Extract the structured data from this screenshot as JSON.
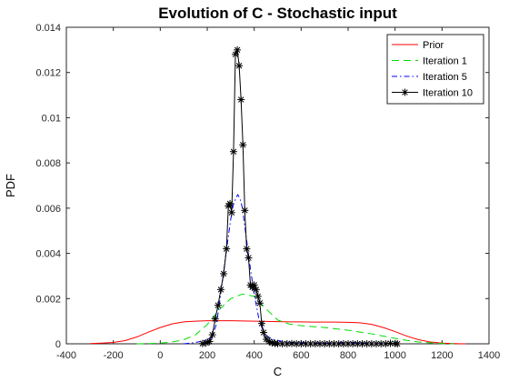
{
  "chart_data": {
    "type": "line",
    "title": "Evolution of C - Stochastic input",
    "xlabel": "C",
    "ylabel": "PDF",
    "xlim": [
      -400,
      1400
    ],
    "ylim": [
      0,
      0.014
    ],
    "xticks": [
      -400,
      -200,
      0,
      200,
      400,
      600,
      800,
      1000,
      1200,
      1400
    ],
    "xtick_labels": [
      "-400",
      "-200",
      "0",
      "200",
      "400",
      "600",
      "800",
      "1000",
      "1200",
      "1400"
    ],
    "yticks": [
      0,
      0.002,
      0.004,
      0.006,
      0.008,
      0.01,
      0.012,
      0.014
    ],
    "ytick_labels": [
      "0",
      "0.002",
      "0.004",
      "0.006",
      "0.008",
      "0.01",
      "0.012",
      "0.014"
    ],
    "grid": false,
    "legend_position": "top-right",
    "series": [
      {
        "name": "Prior",
        "color": "#ff0000",
        "dash": "solid",
        "marker": "none",
        "x": [
          -300,
          -250,
          -200,
          -150,
          -100,
          -50,
          0,
          50,
          100,
          150,
          200,
          250,
          300,
          350,
          400,
          450,
          500,
          550,
          600,
          650,
          700,
          750,
          800,
          850,
          900,
          950,
          1000,
          1050,
          1100,
          1150,
          1200,
          1250,
          1300
        ],
        "y": [
          1e-05,
          3e-05,
          6e-05,
          0.00014,
          0.0003,
          0.00052,
          0.00072,
          0.00088,
          0.00097,
          0.001,
          0.00102,
          0.00102,
          0.00102,
          0.00101,
          0.001,
          0.00099,
          0.00098,
          0.00097,
          0.00097,
          0.00096,
          0.00096,
          0.00096,
          0.00095,
          0.00093,
          0.00086,
          0.00072,
          0.00054,
          0.00034,
          0.00018,
          8e-05,
          3e-05,
          1e-05,
          0
        ]
      },
      {
        "name": "Iteration 1",
        "color": "#00dd00",
        "dash": "8,5",
        "marker": "none",
        "x": [
          -100,
          -50,
          0,
          50,
          100,
          150,
          200,
          250,
          300,
          350,
          400,
          450,
          500,
          550,
          600,
          650,
          700,
          750,
          800,
          850,
          900,
          950,
          1000,
          1050,
          1100,
          1150,
          1200,
          1250
        ],
        "y": [
          0,
          1e-05,
          3e-05,
          8e-05,
          0.00018,
          0.0004,
          0.00085,
          0.0015,
          0.002,
          0.0022,
          0.0021,
          0.00155,
          0.00105,
          0.00087,
          0.0008,
          0.00076,
          0.00072,
          0.00066,
          0.0006,
          0.00052,
          0.00044,
          0.00034,
          0.00024,
          0.00015,
          8e-05,
          4e-05,
          1e-05,
          0
        ]
      },
      {
        "name": "Iteration 5",
        "color": "#0000ff",
        "dash": "6,3,1.5,3",
        "marker": "none",
        "x": [
          100,
          130,
          160,
          180,
          200,
          220,
          240,
          260,
          280,
          300,
          310,
          320,
          330,
          340,
          350,
          360,
          380,
          400,
          420,
          440,
          460,
          480,
          500,
          520,
          540,
          560,
          600,
          650,
          700,
          750,
          800,
          850,
          900,
          950,
          1000
        ],
        "y": [
          0,
          3e-05,
          8e-05,
          0.00012,
          0.0002,
          0.0003,
          0.0009,
          0.0024,
          0.004,
          0.0055,
          0.0061,
          0.0064,
          0.0066,
          0.0064,
          0.006,
          0.0052,
          0.0036,
          0.0022,
          0.0011,
          0.0005,
          0.0003,
          0.0002,
          0.00015,
          0.0001,
          8e-05,
          6e-05,
          4e-05,
          3e-05,
          2e-05,
          3e-05,
          6e-05,
          3e-05,
          2e-05,
          1e-05,
          0
        ]
      },
      {
        "name": "Iteration 10",
        "color": "#000000",
        "dash": "solid",
        "marker": "asterisk",
        "x": [
          180,
          195,
          210,
          222,
          234,
          246,
          258,
          270,
          282,
          290,
          297,
          304,
          312,
          320,
          328,
          336,
          344,
          352,
          360,
          368,
          376,
          384,
          392,
          400,
          408,
          416,
          424,
          432,
          440,
          452,
          464,
          476,
          488,
          500,
          520,
          540,
          560,
          580,
          600,
          620,
          640,
          660,
          680,
          700,
          720,
          740,
          760,
          780,
          800,
          820,
          840,
          860,
          880,
          900,
          920,
          940,
          960,
          980,
          1000,
          1010
        ],
        "y": [
          1e-05,
          4e-05,
          0.0001,
          0.0004,
          0.0011,
          0.0017,
          0.0024,
          0.0031,
          0.0042,
          0.0061,
          0.0062,
          0.0058,
          0.0085,
          0.0128,
          0.013,
          0.0123,
          0.0108,
          0.0088,
          0.0059,
          0.0042,
          0.0038,
          0.0026,
          0.0025,
          0.0026,
          0.0024,
          0.0021,
          0.0018,
          0.0009,
          0.0005,
          0.0002,
          0.0001,
          4e-05,
          2e-05,
          1e-05,
          0,
          0,
          1e-05,
          0,
          0,
          0,
          0,
          0,
          0,
          0,
          0,
          0,
          0,
          0,
          0,
          0,
          0,
          0,
          0,
          0,
          0,
          0,
          0,
          2e-05,
          1e-05,
          0
        ]
      }
    ]
  }
}
